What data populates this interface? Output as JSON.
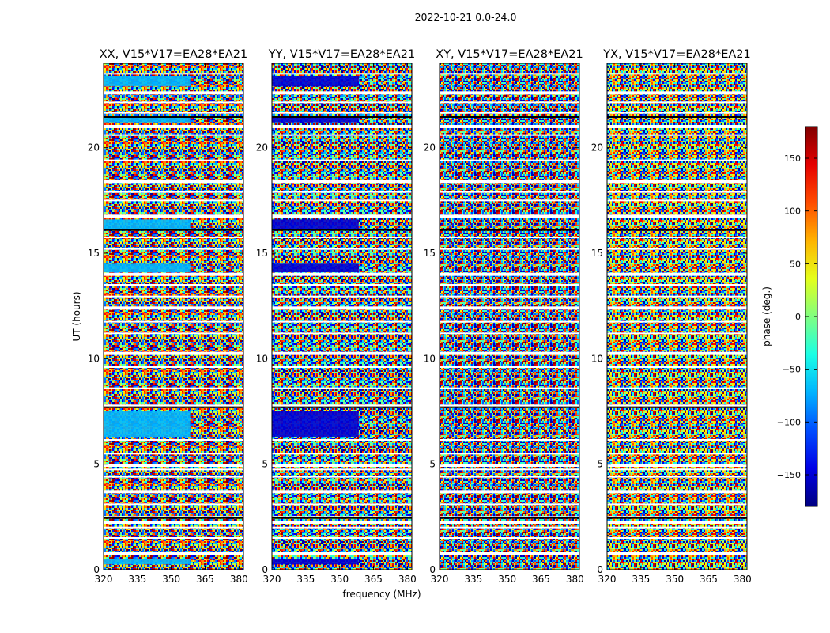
{
  "figure_title": "2022-10-21 0.0-24.0",
  "chart_data": {
    "type": "heatmap",
    "suptitle": "2022-10-21 0.0-24.0",
    "xlabel": "frequency (MHz)",
    "ylabel": "UT (hours)",
    "x_range": [
      320,
      382
    ],
    "y_range": [
      0,
      24
    ],
    "x_ticks": [
      320,
      335,
      350,
      365,
      380
    ],
    "y_ticks": [
      0,
      5,
      10,
      15,
      20
    ],
    "panels": [
      {
        "title": "XX, V15*V17=EA28*EA21",
        "coherent_bands": [
          [
            0.25,
            0.5
          ],
          [
            6.3,
            7.5
          ],
          [
            14.1,
            14.5
          ],
          [
            16.1,
            16.6
          ],
          [
            21.2,
            21.5
          ],
          [
            22.9,
            23.4
          ]
        ],
        "coherent_phase_deg": -70
      },
      {
        "title": "YY, V15*V17=EA28*EA21",
        "coherent_bands": [
          [
            0.25,
            0.5
          ],
          [
            6.3,
            7.5
          ],
          [
            14.1,
            14.5
          ],
          [
            16.1,
            16.6
          ],
          [
            21.2,
            21.5
          ],
          [
            22.9,
            23.4
          ]
        ],
        "coherent_phase_deg": -150
      },
      {
        "title": "XY, V15*V17=EA28*EA21",
        "coherent_bands": [],
        "coherent_phase_deg": 0
      },
      {
        "title": "YX, V15*V17=EA28*EA21",
        "coherent_bands": [],
        "coherent_phase_deg": 0
      }
    ],
    "flagged_rows_hours": [
      0.75,
      1.5,
      2.0,
      2.25,
      2.5,
      3.1,
      3.7,
      4.4,
      4.75,
      4.95,
      5.5,
      6.15,
      7.75,
      8.6,
      9.6,
      10.25,
      11.2,
      11.75,
      12.4,
      12.95,
      13.5,
      14.0,
      15.2,
      15.75,
      16.75,
      17.5,
      17.9,
      18.4,
      19.4,
      20.6,
      21.0,
      21.65,
      22.15,
      22.6,
      23.5
    ],
    "colorbar": {
      "label": "phase (deg.)",
      "range": [
        -180,
        180
      ],
      "ticks": [
        150,
        100,
        50,
        0,
        -50,
        -100,
        -150
      ],
      "colormap": "jet"
    }
  }
}
